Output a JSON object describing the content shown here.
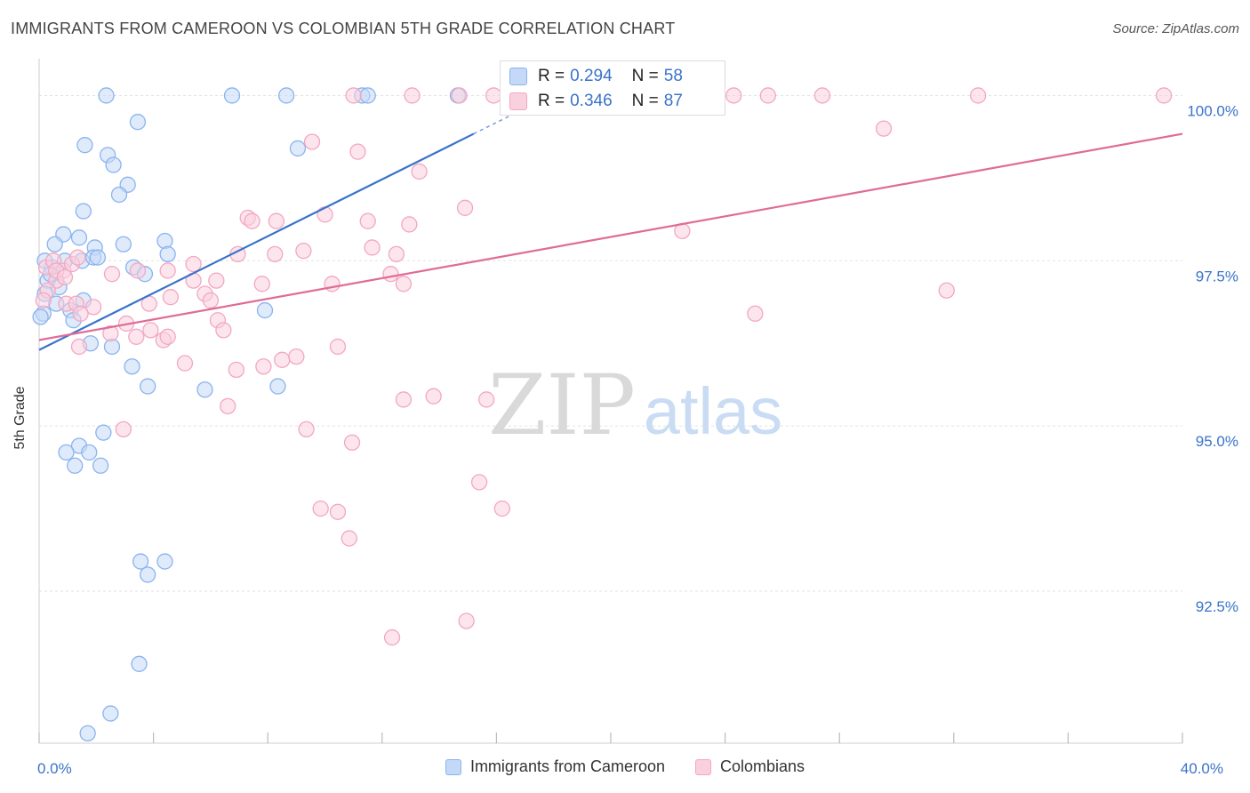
{
  "title": "IMMIGRANTS FROM CAMEROON VS COLOMBIAN 5TH GRADE CORRELATION CHART",
  "source": "Source: ZipAtlas.com",
  "watermark": {
    "zip": "ZIP",
    "atlas": "atlas"
  },
  "stats": [
    {
      "r_label": "R =",
      "r_value": "0.294",
      "n_label": "N =",
      "n_value": "58",
      "color": "#8ab4ee",
      "fill": "#c4d9f7"
    },
    {
      "r_label": "R =",
      "r_value": "0.346",
      "n_label": "N =",
      "n_value": "87",
      "color": "#f3a7c2",
      "fill": "#f9d0de"
    }
  ],
  "legend": [
    {
      "label": "Immigrants from Cameroon",
      "color": "#8ab4ee",
      "fill": "#c4d9f7"
    },
    {
      "label": "Colombians",
      "color": "#f3a7c2",
      "fill": "#f9d0de"
    }
  ],
  "chart_data": {
    "type": "scatter",
    "title": "IMMIGRANTS FROM CAMEROON VS COLOMBIAN 5TH GRADE CORRELATION CHART",
    "xlabel": "",
    "ylabel": "5th Grade",
    "xlim": [
      0,
      40
    ],
    "ylim": [
      90.2,
      100.45
    ],
    "x_tick_labels": [
      {
        "value": 0,
        "label": "0.0%"
      },
      {
        "value": 40,
        "label": "40.0%"
      }
    ],
    "y_ticks": [
      {
        "value": 100,
        "label": "100.0%"
      },
      {
        "value": 97.5,
        "label": "97.5%"
      },
      {
        "value": 95,
        "label": "95.0%"
      },
      {
        "value": 92.5,
        "label": "92.5%"
      }
    ],
    "grid": true,
    "legend_position": "bottom",
    "series": [
      {
        "name": "Immigrants from Cameroon",
        "color": "#3a73c9",
        "point_stroke": "#8ab4ee",
        "point_fill": "#c4d9f7",
        "trend": {
          "x0": 0,
          "y0": 96.15,
          "x1": 15.2,
          "y1": 99.42,
          "dash_to_x": 16.5,
          "dash_to_y": 99.7
        },
        "points": [
          [
            2.35,
            100.0
          ],
          [
            6.75,
            100.0
          ],
          [
            8.65,
            100.0
          ],
          [
            11.3,
            100.0
          ],
          [
            11.5,
            100.0
          ],
          [
            14.65,
            100.0
          ],
          [
            3.45,
            99.6
          ],
          [
            1.6,
            99.25
          ],
          [
            2.4,
            99.1
          ],
          [
            2.6,
            98.95
          ],
          [
            9.05,
            99.2
          ],
          [
            3.1,
            98.65
          ],
          [
            2.8,
            98.5
          ],
          [
            1.55,
            98.25
          ],
          [
            0.85,
            97.9
          ],
          [
            0.55,
            97.75
          ],
          [
            1.4,
            97.85
          ],
          [
            1.95,
            97.7
          ],
          [
            2.95,
            97.75
          ],
          [
            4.4,
            97.8
          ],
          [
            0.9,
            97.5
          ],
          [
            0.45,
            97.4
          ],
          [
            1.5,
            97.5
          ],
          [
            1.9,
            97.55
          ],
          [
            2.05,
            97.55
          ],
          [
            3.3,
            97.4
          ],
          [
            3.7,
            97.3
          ],
          [
            4.5,
            97.6
          ],
          [
            0.3,
            97.2
          ],
          [
            0.7,
            97.1
          ],
          [
            0.2,
            97.0
          ],
          [
            1.55,
            96.9
          ],
          [
            0.6,
            96.85
          ],
          [
            1.1,
            96.75
          ],
          [
            0.15,
            96.7
          ],
          [
            0.05,
            96.65
          ],
          [
            1.2,
            96.6
          ],
          [
            7.9,
            96.75
          ],
          [
            1.8,
            96.25
          ],
          [
            2.55,
            96.2
          ],
          [
            3.25,
            95.9
          ],
          [
            3.8,
            95.6
          ],
          [
            5.8,
            95.55
          ],
          [
            8.35,
            95.6
          ],
          [
            2.25,
            94.9
          ],
          [
            1.4,
            94.7
          ],
          [
            0.95,
            94.6
          ],
          [
            1.75,
            94.6
          ],
          [
            1.25,
            94.4
          ],
          [
            2.15,
            94.4
          ],
          [
            3.55,
            92.95
          ],
          [
            3.8,
            92.75
          ],
          [
            4.4,
            92.95
          ],
          [
            3.5,
            91.4
          ],
          [
            2.5,
            90.65
          ],
          [
            1.7,
            90.35
          ],
          [
            0.4,
            97.3
          ],
          [
            0.2,
            97.5
          ]
        ]
      },
      {
        "name": "Colombians",
        "color": "#e06b97",
        "point_stroke": "#f3a7c2",
        "point_fill": "#f9d0de",
        "trend": {
          "x0": 0,
          "y0": 96.3,
          "x1": 40,
          "y1": 99.42
        },
        "points": [
          [
            11.0,
            100.0
          ],
          [
            13.05,
            100.0
          ],
          [
            14.7,
            100.0
          ],
          [
            15.9,
            100.0
          ],
          [
            18.65,
            100.0
          ],
          [
            19.5,
            100.0
          ],
          [
            24.3,
            100.0
          ],
          [
            25.5,
            100.0
          ],
          [
            27.4,
            100.0
          ],
          [
            32.85,
            100.0
          ],
          [
            39.35,
            100.0
          ],
          [
            29.55,
            99.5
          ],
          [
            9.55,
            99.3
          ],
          [
            11.15,
            99.15
          ],
          [
            13.3,
            98.85
          ],
          [
            14.9,
            98.3
          ],
          [
            7.3,
            98.15
          ],
          [
            7.45,
            98.1
          ],
          [
            8.3,
            98.1
          ],
          [
            10.0,
            98.2
          ],
          [
            11.5,
            98.1
          ],
          [
            12.95,
            98.05
          ],
          [
            22.5,
            97.95
          ],
          [
            0.25,
            97.4
          ],
          [
            0.5,
            97.5
          ],
          [
            0.85,
            97.35
          ],
          [
            1.15,
            97.45
          ],
          [
            1.35,
            97.55
          ],
          [
            2.55,
            97.3
          ],
          [
            3.45,
            97.35
          ],
          [
            4.5,
            97.35
          ],
          [
            5.4,
            97.2
          ],
          [
            5.4,
            97.45
          ],
          [
            6.2,
            97.2
          ],
          [
            6.95,
            97.6
          ],
          [
            7.8,
            97.15
          ],
          [
            8.25,
            97.6
          ],
          [
            9.25,
            97.65
          ],
          [
            10.25,
            97.15
          ],
          [
            11.65,
            97.7
          ],
          [
            12.5,
            97.6
          ],
          [
            12.3,
            97.3
          ],
          [
            12.75,
            97.15
          ],
          [
            31.75,
            97.05
          ],
          [
            0.6,
            97.2
          ],
          [
            0.3,
            97.05
          ],
          [
            0.95,
            96.85
          ],
          [
            1.3,
            96.85
          ],
          [
            1.9,
            96.8
          ],
          [
            3.05,
            96.55
          ],
          [
            3.85,
            96.85
          ],
          [
            4.6,
            96.95
          ],
          [
            5.8,
            97.0
          ],
          [
            6.0,
            96.9
          ],
          [
            6.25,
            96.6
          ],
          [
            6.45,
            96.45
          ],
          [
            0.15,
            96.9
          ],
          [
            1.45,
            96.7
          ],
          [
            1.4,
            96.2
          ],
          [
            2.5,
            96.4
          ],
          [
            3.4,
            96.35
          ],
          [
            3.9,
            96.45
          ],
          [
            4.35,
            96.3
          ],
          [
            4.5,
            96.35
          ],
          [
            5.1,
            95.95
          ],
          [
            6.9,
            95.85
          ],
          [
            7.85,
            95.9
          ],
          [
            8.5,
            96.0
          ],
          [
            9.0,
            96.05
          ],
          [
            10.45,
            96.2
          ],
          [
            25.05,
            96.7
          ],
          [
            6.6,
            95.3
          ],
          [
            12.75,
            95.4
          ],
          [
            13.8,
            95.45
          ],
          [
            15.65,
            95.4
          ],
          [
            2.95,
            94.95
          ],
          [
            9.35,
            94.95
          ],
          [
            10.95,
            94.75
          ],
          [
            15.4,
            94.15
          ],
          [
            9.85,
            93.75
          ],
          [
            10.45,
            93.7
          ],
          [
            16.2,
            93.75
          ],
          [
            10.85,
            93.3
          ],
          [
            14.95,
            92.05
          ],
          [
            12.35,
            91.8
          ],
          [
            0.6,
            97.35
          ],
          [
            0.9,
            97.25
          ]
        ]
      }
    ]
  }
}
